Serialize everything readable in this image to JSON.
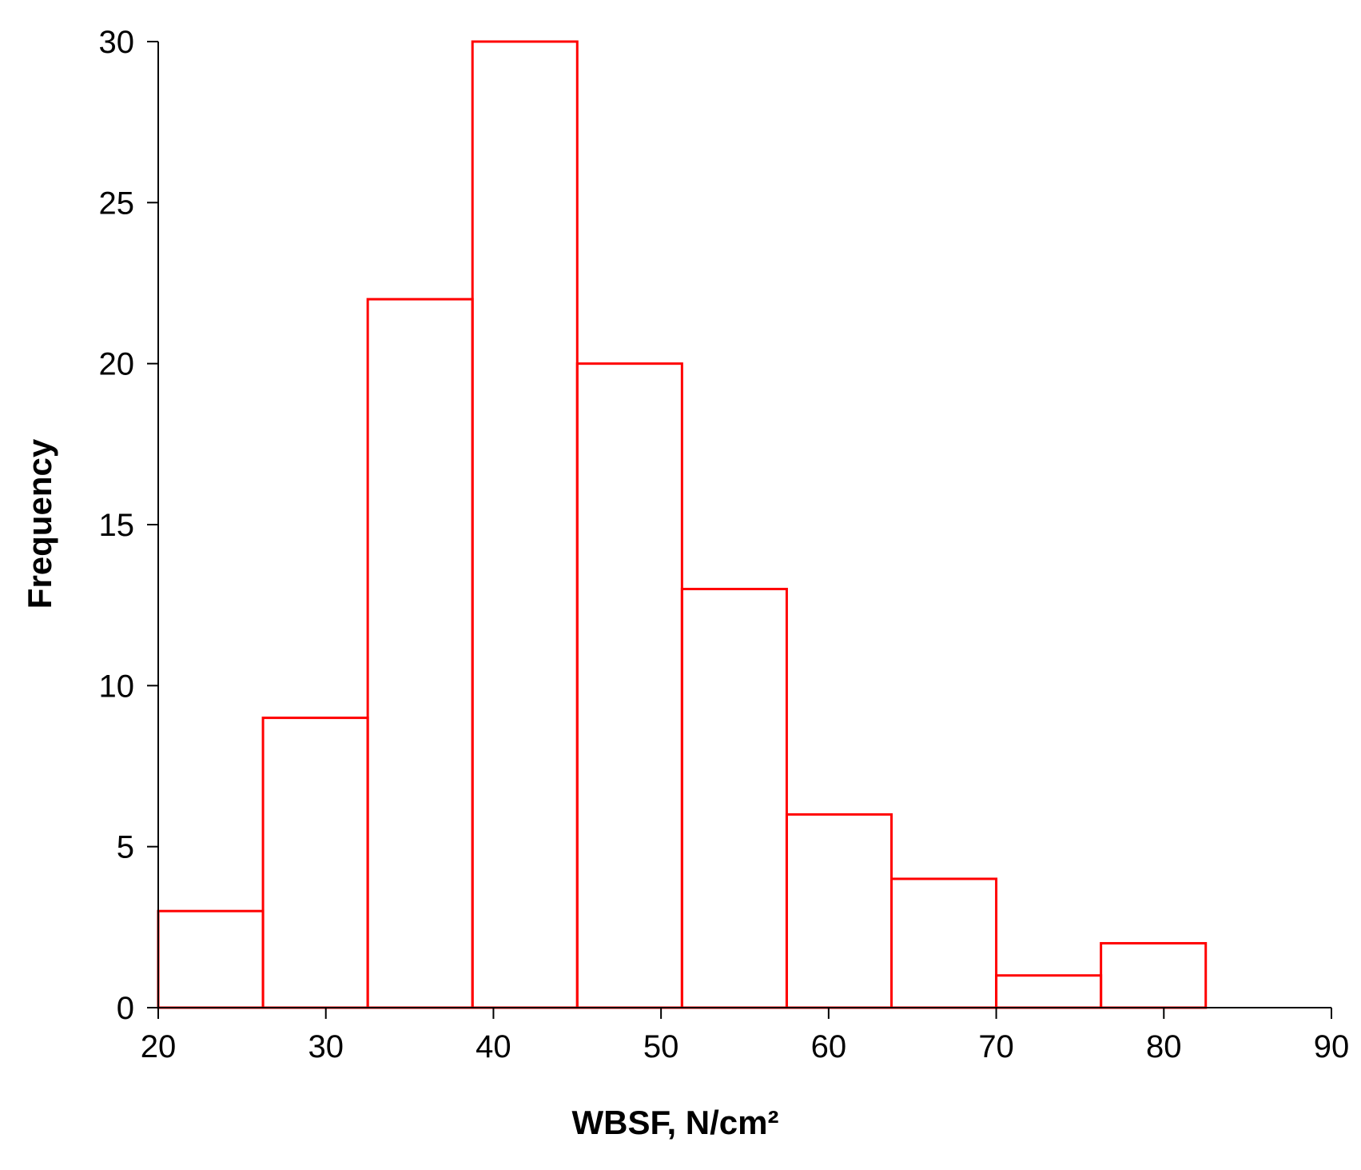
{
  "chart_data": {
    "type": "bar",
    "subtype": "histogram",
    "title": "",
    "xlabel": "WBSF, N/cm²",
    "ylabel": "Frequency",
    "xlim": [
      20,
      90
    ],
    "ylim": [
      0,
      30
    ],
    "x_ticks": [
      "20",
      "30",
      "40",
      "50",
      "60",
      "70",
      "80",
      "90"
    ],
    "y_ticks": [
      "0",
      "5",
      "10",
      "15",
      "20",
      "25",
      "30"
    ],
    "bin_edges": [
      20,
      26.25,
      32.5,
      38.75,
      45,
      51.25,
      57.5,
      63.75,
      70,
      76.25,
      82.5
    ],
    "values": [
      3,
      9,
      22,
      30,
      20,
      13,
      6,
      4,
      1,
      2
    ],
    "bar_style": "outline",
    "bar_color": "#ff0000",
    "grid": false,
    "legend": "none"
  }
}
